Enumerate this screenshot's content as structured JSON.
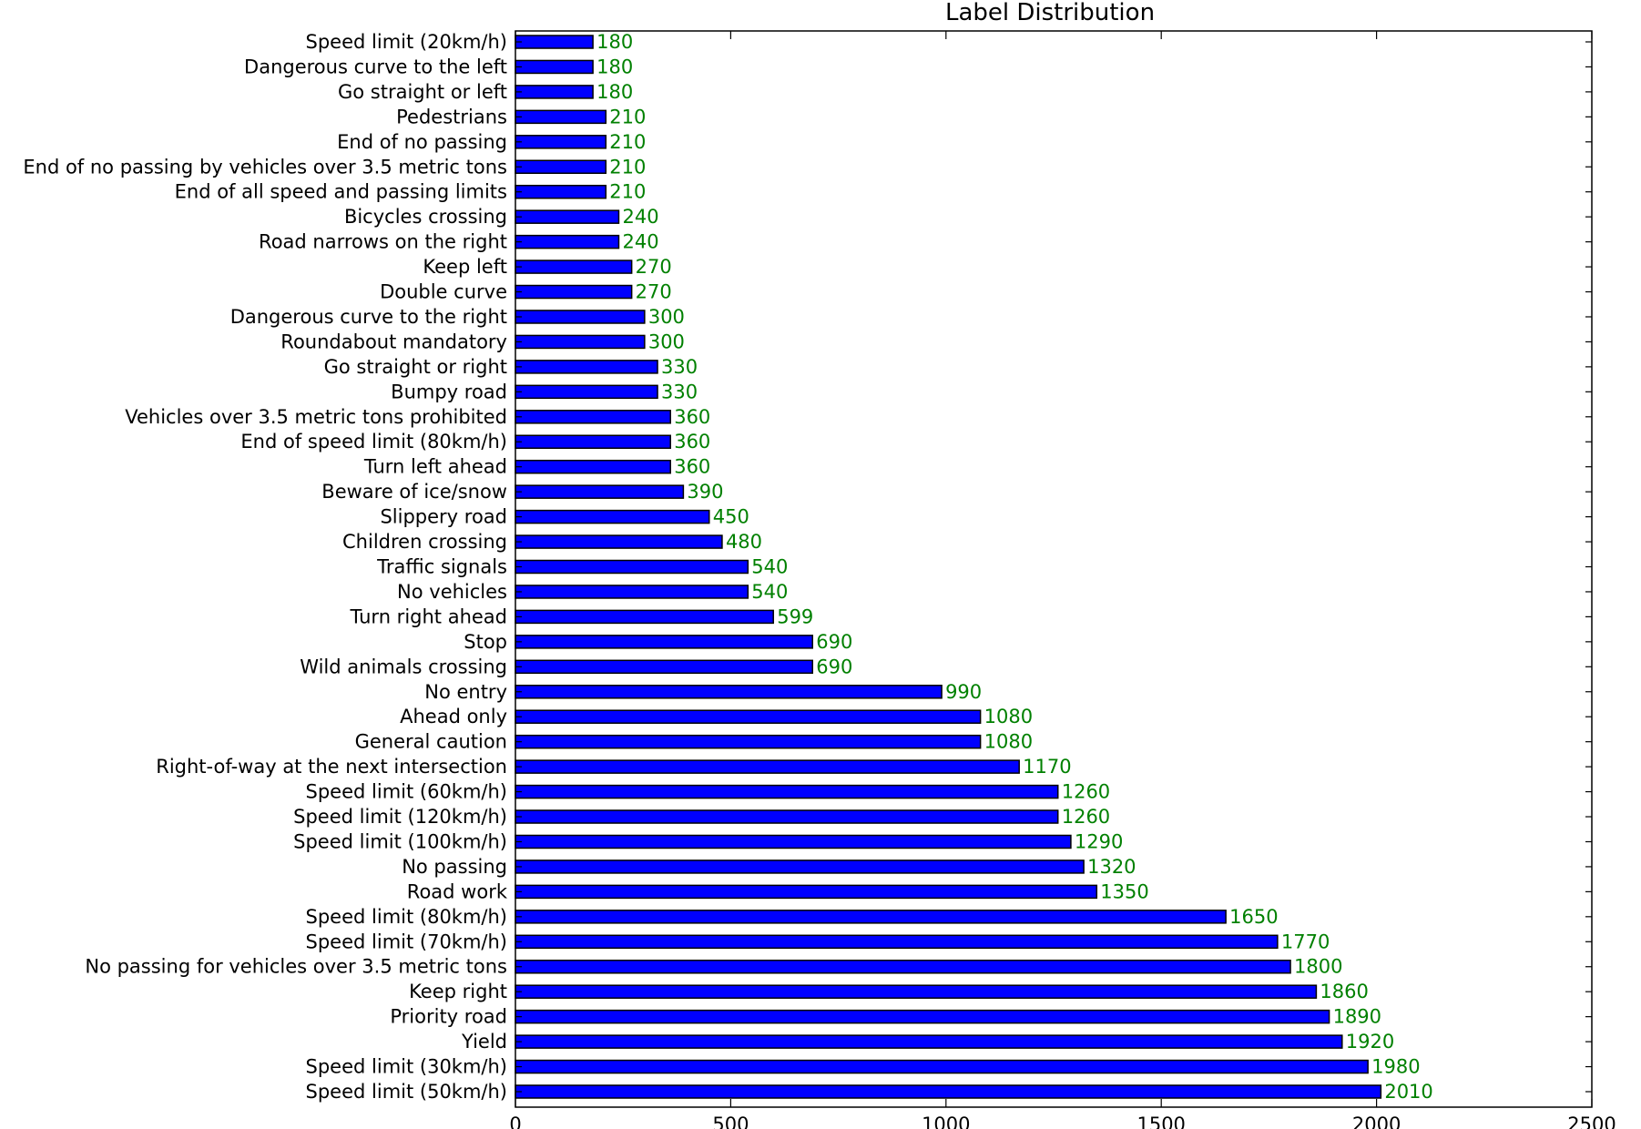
{
  "chart_data": {
    "type": "bar",
    "orientation": "horizontal",
    "title": "Label Distribution",
    "xlabel": "",
    "ylabel": "",
    "xlim": [
      0,
      2500
    ],
    "xticks": [
      0,
      500,
      1000,
      1500,
      2000,
      2500
    ],
    "grid": false,
    "legend": "none",
    "bar_color": "#0000ff",
    "value_label_color": "#008000",
    "categories": [
      "Speed limit (20km/h)",
      "Dangerous curve to the left",
      "Go straight or left",
      "Pedestrians",
      "End of no passing",
      "End of no passing by vehicles over 3.5 metric tons",
      "End of all speed and passing limits",
      "Bicycles crossing",
      "Road narrows on the right",
      "Keep left",
      "Double curve",
      "Dangerous curve to the right",
      "Roundabout mandatory",
      "Go straight or right",
      "Bumpy road",
      "Vehicles over 3.5 metric tons prohibited",
      "End of speed limit (80km/h)",
      "Turn left ahead",
      "Beware of ice/snow",
      "Slippery road",
      "Children crossing",
      "Traffic signals",
      "No vehicles",
      "Turn right ahead",
      "Stop",
      "Wild animals crossing",
      "No entry",
      "Ahead only",
      "General caution",
      "Right-of-way at the next intersection",
      "Speed limit (60km/h)",
      "Speed limit (120km/h)",
      "Speed limit (100km/h)",
      "No passing",
      "Road work",
      "Speed limit (80km/h)",
      "Speed limit (70km/h)",
      "No passing for vehicles over 3.5 metric tons",
      "Keep right",
      "Priority road",
      "Yield",
      "Speed limit (30km/h)",
      "Speed limit (50km/h)"
    ],
    "values": [
      180,
      180,
      180,
      210,
      210,
      210,
      210,
      240,
      240,
      270,
      270,
      300,
      300,
      330,
      330,
      360,
      360,
      360,
      390,
      450,
      480,
      540,
      540,
      599,
      690,
      690,
      990,
      1080,
      1080,
      1170,
      1260,
      1260,
      1290,
      1320,
      1350,
      1650,
      1770,
      1800,
      1860,
      1890,
      1920,
      1980,
      2010
    ]
  }
}
